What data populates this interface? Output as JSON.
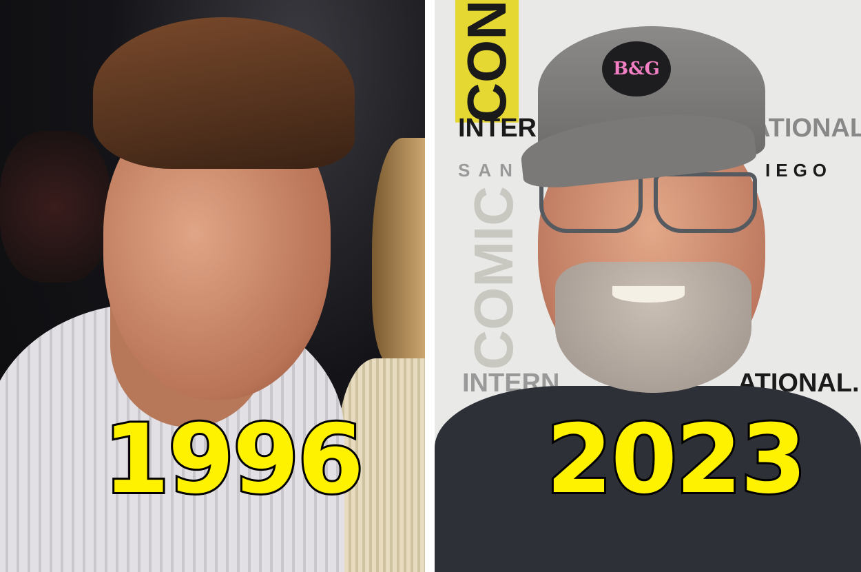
{
  "left_photo": {
    "year_label": "1996"
  },
  "right_photo": {
    "year_label": "2023",
    "cap_patch_text": "B&G",
    "backdrop_text": {
      "comic": "COMIC",
      "con": "CON",
      "intern": "INTERN",
      "ational": "ATIONAL.",
      "san": "SAN",
      "iego": "IEGO"
    }
  },
  "colors": {
    "label_fill": "#fff200",
    "label_stroke": "#000000",
    "patch_text": "#f27fc4"
  }
}
